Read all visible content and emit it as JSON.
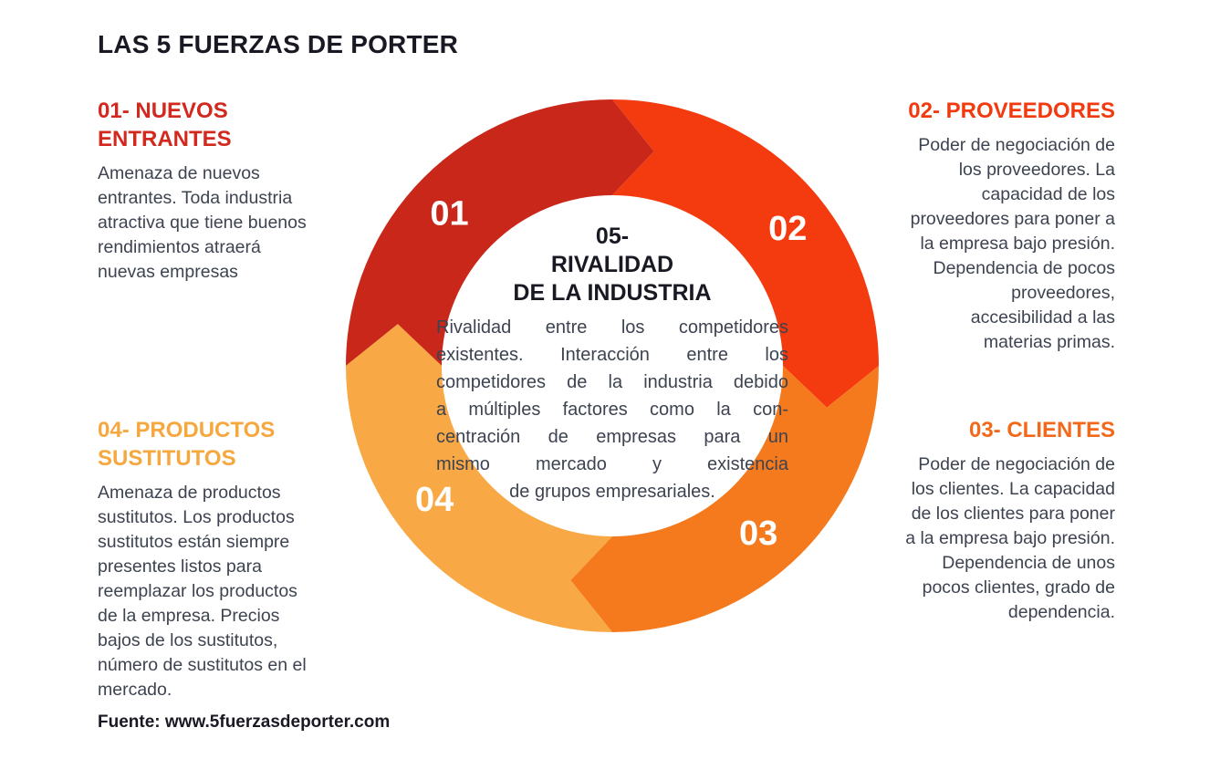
{
  "page": {
    "title": "LAS 5 FUERZAS DE PORTER",
    "source_line": "Fuente: www.5fuerzasdeporter.com",
    "background_color": "#ffffff",
    "title_color": "#191923",
    "body_text_color": "#3d4350"
  },
  "forces": {
    "f1": {
      "heading_lines": [
        "01- NUEVOS",
        "ENTRANTES"
      ],
      "heading_color": "#d2281e",
      "body_lines": [
        "Amenaza de nuevos",
        "entrantes. Toda industria",
        "atractiva que tiene buenos",
        "rendimientos atraerá",
        "nuevas empresas"
      ]
    },
    "f2": {
      "heading_lines": [
        "02- PROVEEDORES"
      ],
      "heading_color": "#f23a10",
      "body_lines": [
        "Poder de negociación de",
        "los proveedores. La",
        "capacidad de los",
        "proveedores para poner a",
        "la empresa bajo presión.",
        "Dependencia de pocos",
        "proveedores,",
        "accesibilidad a las",
        "materias primas."
      ]
    },
    "f3": {
      "heading_lines": [
        "03- CLIENTES"
      ],
      "heading_color": "#f2691c",
      "body_lines": [
        "Poder de negociación de",
        "los clientes. La capacidad",
        "de los clientes para poner",
        "a la empresa bajo presión.",
        "Dependencia de unos",
        "pocos clientes, grado de",
        "dependencia."
      ]
    },
    "f4": {
      "heading_lines": [
        "04- PRODUCTOS",
        "SUSTITUTOS"
      ],
      "heading_color": "#f6a73e",
      "body_lines": [
        "Amenaza de productos",
        "sustitutos. Los productos",
        "sustitutos están siempre",
        "presentes listos para",
        "reemplazar los productos",
        "de la empresa. Precios",
        "bajos de los sustitutos,",
        "número de sustitutos en el",
        "mercado."
      ]
    },
    "f5": {
      "heading_lines": [
        "05-",
        "RIVALIDAD",
        "DE LA INDUSTRIA"
      ],
      "heading_color": "#191923",
      "body_lines": [
        "Rivalidad entre los competidores",
        "existentes. Interacción entre los",
        "competidores de la industria debido",
        "a múltiples factores como la con-",
        "centración de empresas para un",
        "mismo mercado y existencia",
        "de grupos empresariales."
      ]
    }
  },
  "ring": {
    "outer_radius": 292,
    "inner_radius": 187,
    "arrow_tip_degrees": 11,
    "label_radius": 244,
    "label_color": "#ffffff",
    "segments": [
      {
        "number": "01",
        "color": "#c9271a",
        "start_angle": 270,
        "end_angle": 360,
        "label_angle": 313
      },
      {
        "number": "02",
        "color": "#f43a0f",
        "start_angle": 0,
        "end_angle": 90,
        "label_angle": 52
      },
      {
        "number": "03",
        "color": "#f57a1d",
        "start_angle": 90,
        "end_angle": 180,
        "label_angle": 139
      },
      {
        "number": "04",
        "color": "#f8a844",
        "start_angle": 180,
        "end_angle": 270,
        "label_angle": 233
      }
    ]
  }
}
